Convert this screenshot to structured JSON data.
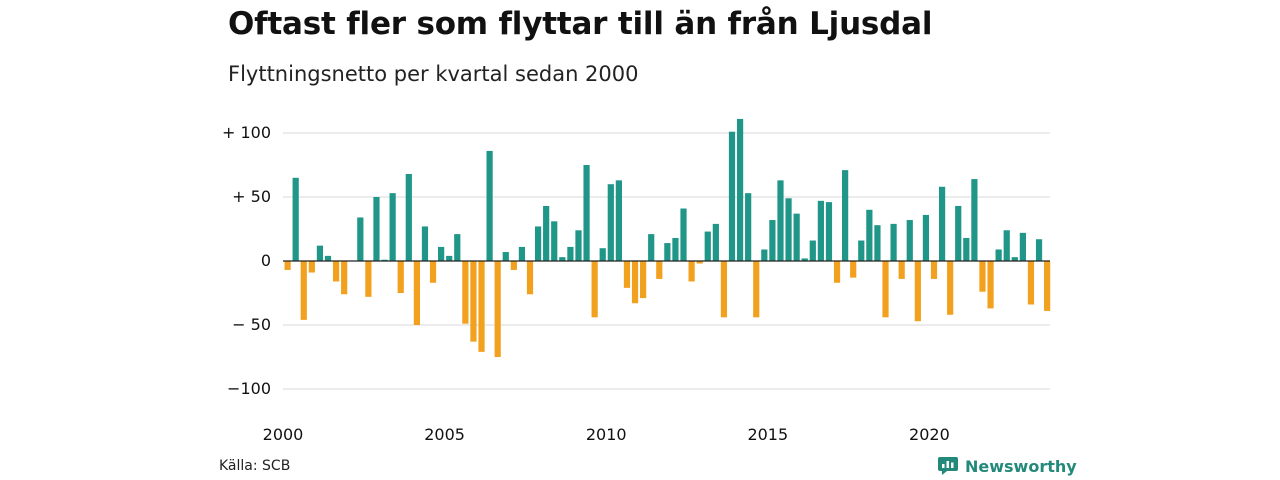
{
  "header": {
    "title": "Oftast fler som flyttar till än från Ljusdal",
    "subtitle": "Flyttningsnetto per kvartal sedan 2000"
  },
  "footer": {
    "source": "Källa: SCB",
    "brand": "Newsworthy"
  },
  "colors": {
    "positive": "#1f9688",
    "negative": "#f2a11f",
    "grid": "#d9d9d9",
    "zero_line": "#222222",
    "brand": "#23897a"
  },
  "chart_data": {
    "type": "bar",
    "title": "Oftast fler som flyttar till än från Ljusdal",
    "subtitle": "Flyttningsnetto per kvartal sedan 2000",
    "x_start": "2000 Q1",
    "frequency": "quarterly",
    "ylim": [
      -110,
      110
    ],
    "grid": true,
    "y_ticks": [
      {
        "value": 100,
        "label": "+ 100"
      },
      {
        "value": 50,
        "label": "+  50"
      },
      {
        "value": 0,
        "label": "0"
      },
      {
        "value": -50,
        "label": "− 50"
      },
      {
        "value": -100,
        "label": "−100"
      }
    ],
    "x_ticks": [
      {
        "year": 2000,
        "label": "2000"
      },
      {
        "year": 2005,
        "label": "2005"
      },
      {
        "year": 2010,
        "label": "2010"
      },
      {
        "year": 2015,
        "label": "2015"
      },
      {
        "year": 2020,
        "label": "2020"
      }
    ],
    "values": [
      -7,
      65,
      -46,
      -9,
      12,
      4,
      -16,
      -26,
      0,
      34,
      -28,
      50,
      1,
      53,
      -25,
      68,
      -50,
      27,
      -17,
      11,
      4,
      21,
      -49,
      -63,
      -71,
      86,
      -75,
      7,
      -7,
      11,
      -26,
      27,
      43,
      31,
      3,
      11,
      24,
      75,
      -44,
      10,
      60,
      63,
      -21,
      -33,
      -29,
      21,
      -14,
      14,
      18,
      41,
      -16,
      -2,
      23,
      29,
      -44,
      101,
      111,
      53,
      -44,
      9,
      32,
      63,
      49,
      37,
      2,
      16,
      47,
      46,
      -17,
      71,
      -13,
      16,
      40,
      28,
      -44,
      29,
      -14,
      32,
      -47,
      36,
      -14,
      58,
      -42,
      43,
      18,
      64,
      -24,
      -37,
      9,
      24,
      3,
      22,
      -34,
      17,
      -39
    ]
  }
}
